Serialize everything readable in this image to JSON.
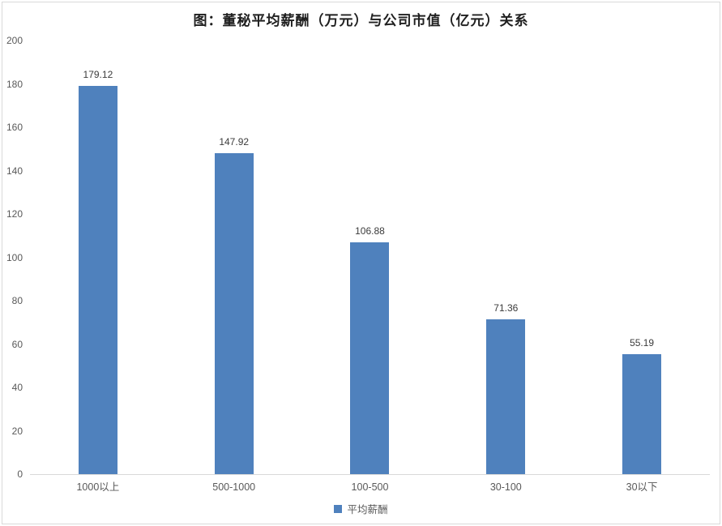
{
  "chart_data": {
    "type": "bar",
    "title": "图：董秘平均薪酬（万元）与公司市值（亿元）关系",
    "categories": [
      "1000以上",
      "500-1000",
      "100-500",
      "30-100",
      "30以下"
    ],
    "series": [
      {
        "name": "平均薪酬",
        "values": [
          179.12,
          147.92,
          106.88,
          71.36,
          55.19
        ]
      }
    ],
    "xlabel": "",
    "ylabel": "",
    "ylim": [
      0,
      200
    ],
    "ytick_interval": 20,
    "grid": false,
    "legend_position": "bottom",
    "bar_color": "#4F81BD"
  },
  "colors": {
    "bar": "#4F81BD",
    "axis_line": "#d9d9d9",
    "tick_label": "#595959",
    "value_label": "#3b3b3b",
    "title": "#1f1f1f",
    "frame_border": "#d9d9d9",
    "background": "#ffffff"
  },
  "legend": {
    "label": "平均薪酬"
  }
}
